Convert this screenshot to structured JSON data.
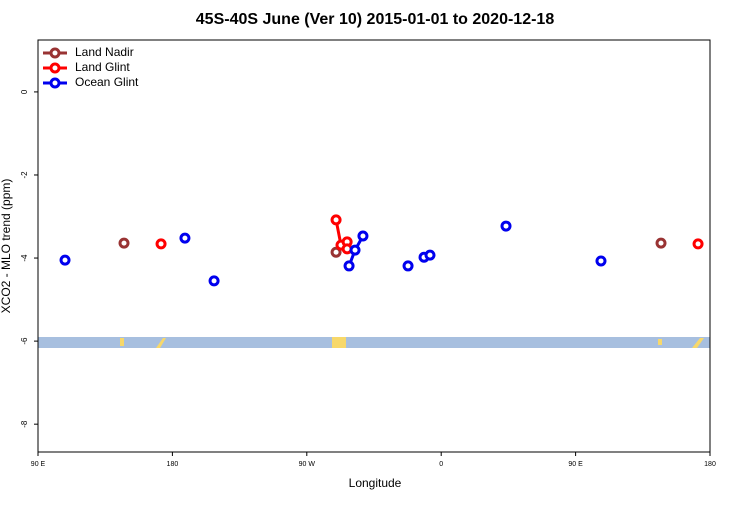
{
  "chart_data": {
    "type": "scatter",
    "title": "45S-40S June (Ver 10)   2015-01-01 to 2020-12-18",
    "x_label": "Longitude",
    "y_label": "XCO2 - MLO trend (ppm)",
    "xlim": [
      90,
      540
    ],
    "ylim": [
      -8.67,
      1.25
    ],
    "xticks": [
      {
        "value": 90,
        "label": "90 E"
      },
      {
        "value": 180,
        "label": "180"
      },
      {
        "value": 270,
        "label": "90 W"
      },
      {
        "value": 360,
        "label": "0"
      },
      {
        "value": 450,
        "label": "90 E"
      },
      {
        "value": 540,
        "label": "180"
      }
    ],
    "yticks": [
      0,
      -2,
      -4,
      -6,
      -8
    ],
    "legend": "top-left",
    "series": [
      {
        "name": "Land Nadir",
        "color": "#993333",
        "x": [
          147.6,
          null,
          289.6,
          null,
          507.2
        ],
        "values": [
          -3.64,
          null,
          -3.86,
          null,
          -3.64
        ]
      },
      {
        "name": "Land Glint",
        "color": "#ff0000",
        "x": [
          172.4,
          null,
          289.6,
          292.9,
          297,
          297,
          null,
          532
        ],
        "values": [
          -3.66,
          null,
          -3.08,
          -3.69,
          -3.61,
          -3.78,
          null,
          -3.66
        ]
      },
      {
        "name": "Ocean Glint",
        "color": "#0000ee",
        "x": [
          108.1,
          null,
          188.4,
          null,
          207.9,
          null,
          298.3,
          302.3,
          307.6,
          null,
          337.8,
          null,
          348.5,
          352.5,
          null,
          403.4,
          null,
          467
        ],
        "values": [
          -4.05,
          null,
          -3.52,
          null,
          -4.55,
          null,
          -4.19,
          -3.81,
          -3.47,
          null,
          -4.19,
          null,
          -3.98,
          -3.93,
          null,
          -3.23,
          null,
          -4.07
        ]
      }
    ]
  }
}
